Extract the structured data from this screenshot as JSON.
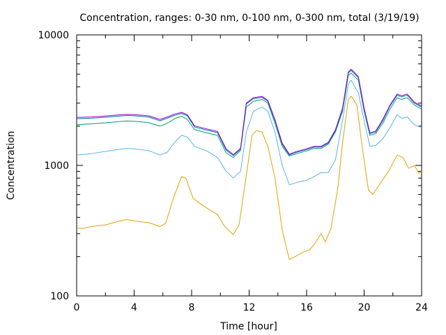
{
  "chart_data": {
    "type": "line",
    "title": "Concentration, ranges: 0-30 nm, 0-100 nm, 0-300 nm, total (3/19/19)",
    "xlabel": "Time [hour]",
    "ylabel": "Concentration",
    "xlim": [
      0,
      24
    ],
    "ylim": [
      100,
      10000
    ],
    "yscale": "log",
    "grid": false,
    "legend": "none",
    "x_ticks": [
      "0",
      "4",
      "8",
      "12",
      "16",
      "20",
      "24"
    ],
    "y_ticks": [
      "100",
      "1000",
      "10000"
    ],
    "series": [
      {
        "color": "#e69f00",
        "points": [
          [
            0,
            330
          ],
          [
            0.5,
            330
          ],
          [
            1,
            340
          ],
          [
            2,
            350
          ],
          [
            3,
            375
          ],
          [
            3.5,
            385
          ],
          [
            4,
            375
          ],
          [
            5,
            365
          ],
          [
            5.8,
            340
          ],
          [
            6.2,
            360
          ],
          [
            6.7,
            550
          ],
          [
            7.3,
            820
          ],
          [
            7.6,
            800
          ],
          [
            8.1,
            560
          ],
          [
            8.7,
            500
          ],
          [
            9.2,
            460
          ],
          [
            9.8,
            420
          ],
          [
            10.3,
            340
          ],
          [
            10.9,
            295
          ],
          [
            11.3,
            350
          ],
          [
            11.7,
            700
          ],
          [
            12.2,
            1700
          ],
          [
            12.5,
            1850
          ],
          [
            12.9,
            1800
          ],
          [
            13.3,
            1400
          ],
          [
            13.8,
            800
          ],
          [
            14.3,
            320
          ],
          [
            14.8,
            190
          ],
          [
            15.2,
            200
          ],
          [
            15.7,
            215
          ],
          [
            16.2,
            225
          ],
          [
            16.6,
            255
          ],
          [
            17.0,
            300
          ],
          [
            17.3,
            260
          ],
          [
            17.7,
            330
          ],
          [
            18.2,
            700
          ],
          [
            18.5,
            1500
          ],
          [
            18.9,
            3200
          ],
          [
            19.1,
            3400
          ],
          [
            19.5,
            2900
          ],
          [
            19.9,
            1300
          ],
          [
            20.3,
            650
          ],
          [
            20.6,
            600
          ],
          [
            21.2,
            750
          ],
          [
            21.7,
            900
          ],
          [
            22.3,
            1200
          ],
          [
            22.7,
            1150
          ],
          [
            23.1,
            950
          ],
          [
            23.5,
            1000
          ],
          [
            23.8,
            870
          ],
          [
            24,
            900
          ]
        ]
      },
      {
        "color": "#56b4e9",
        "points": [
          [
            0,
            1200
          ],
          [
            1,
            1230
          ],
          [
            2,
            1280
          ],
          [
            3,
            1330
          ],
          [
            3.5,
            1350
          ],
          [
            4,
            1340
          ],
          [
            5,
            1300
          ],
          [
            5.8,
            1200
          ],
          [
            6.3,
            1260
          ],
          [
            6.8,
            1500
          ],
          [
            7.3,
            1700
          ],
          [
            7.7,
            1650
          ],
          [
            8.2,
            1400
          ],
          [
            9,
            1300
          ],
          [
            9.8,
            1150
          ],
          [
            10.4,
            900
          ],
          [
            10.9,
            800
          ],
          [
            11.4,
            900
          ],
          [
            11.8,
            1800
          ],
          [
            12.3,
            2600
          ],
          [
            12.9,
            2800
          ],
          [
            13.3,
            2600
          ],
          [
            13.8,
            1800
          ],
          [
            14.3,
            1000
          ],
          [
            14.8,
            710
          ],
          [
            15.3,
            740
          ],
          [
            16,
            770
          ],
          [
            16.5,
            820
          ],
          [
            17,
            880
          ],
          [
            17.5,
            880
          ],
          [
            18,
            1100
          ],
          [
            18.5,
            2200
          ],
          [
            18.9,
            4200
          ],
          [
            19.1,
            4500
          ],
          [
            19.6,
            3600
          ],
          [
            20,
            2200
          ],
          [
            20.4,
            1400
          ],
          [
            20.8,
            1420
          ],
          [
            21.3,
            1600
          ],
          [
            21.8,
            1950
          ],
          [
            22.3,
            2450
          ],
          [
            22.6,
            2300
          ],
          [
            23,
            2350
          ],
          [
            23.5,
            2050
          ],
          [
            24,
            1950
          ]
        ]
      },
      {
        "color": "#009e73",
        "points": [
          [
            0,
            2050
          ],
          [
            1,
            2080
          ],
          [
            2,
            2120
          ],
          [
            3,
            2170
          ],
          [
            3.5,
            2190
          ],
          [
            4,
            2180
          ],
          [
            5,
            2130
          ],
          [
            5.8,
            2000
          ],
          [
            6.3,
            2100
          ],
          [
            6.8,
            2280
          ],
          [
            7.3,
            2380
          ],
          [
            7.7,
            2250
          ],
          [
            8.2,
            1880
          ],
          [
            9,
            1780
          ],
          [
            9.8,
            1700
          ],
          [
            10.4,
            1250
          ],
          [
            10.9,
            1150
          ],
          [
            11.4,
            1300
          ],
          [
            11.8,
            2800
          ],
          [
            12.3,
            3100
          ],
          [
            12.9,
            3200
          ],
          [
            13.3,
            3000
          ],
          [
            13.8,
            2100
          ],
          [
            14.3,
            1400
          ],
          [
            14.8,
            1180
          ],
          [
            15.3,
            1230
          ],
          [
            16,
            1290
          ],
          [
            16.5,
            1350
          ],
          [
            17,
            1350
          ],
          [
            17.5,
            1450
          ],
          [
            18,
            1800
          ],
          [
            18.5,
            2600
          ],
          [
            18.9,
            4900
          ],
          [
            19.1,
            5100
          ],
          [
            19.6,
            4500
          ],
          [
            20,
            2600
          ],
          [
            20.4,
            1700
          ],
          [
            20.8,
            1750
          ],
          [
            21.3,
            2100
          ],
          [
            21.8,
            2700
          ],
          [
            22.3,
            3300
          ],
          [
            22.6,
            3200
          ],
          [
            23,
            3300
          ],
          [
            23.5,
            2900
          ],
          [
            24,
            2700
          ]
        ]
      },
      {
        "color": "#0072b2",
        "points": [
          [
            0,
            2280
          ],
          [
            1,
            2300
          ],
          [
            2,
            2340
          ],
          [
            3,
            2390
          ],
          [
            3.5,
            2410
          ],
          [
            4,
            2400
          ],
          [
            5,
            2350
          ],
          [
            5.8,
            2200
          ],
          [
            6.3,
            2300
          ],
          [
            6.8,
            2420
          ],
          [
            7.3,
            2500
          ],
          [
            7.7,
            2400
          ],
          [
            8.2,
            1970
          ],
          [
            9,
            1870
          ],
          [
            9.8,
            1780
          ],
          [
            10.4,
            1310
          ],
          [
            10.9,
            1190
          ],
          [
            11.4,
            1330
          ],
          [
            11.8,
            2950
          ],
          [
            12.3,
            3250
          ],
          [
            12.9,
            3320
          ],
          [
            13.3,
            3100
          ],
          [
            13.8,
            2200
          ],
          [
            14.3,
            1450
          ],
          [
            14.8,
            1200
          ],
          [
            15.3,
            1260
          ],
          [
            16,
            1320
          ],
          [
            16.5,
            1380
          ],
          [
            17,
            1380
          ],
          [
            17.5,
            1480
          ],
          [
            18,
            1840
          ],
          [
            18.5,
            2700
          ],
          [
            18.9,
            5100
          ],
          [
            19.1,
            5350
          ],
          [
            19.6,
            4700
          ],
          [
            20,
            2700
          ],
          [
            20.4,
            1750
          ],
          [
            20.8,
            1800
          ],
          [
            21.3,
            2200
          ],
          [
            21.8,
            2850
          ],
          [
            22.3,
            3450
          ],
          [
            22.6,
            3350
          ],
          [
            23,
            3450
          ],
          [
            23.5,
            3000
          ],
          [
            24,
            2800
          ]
        ]
      },
      {
        "color": "#9400d3",
        "points": [
          [
            0,
            2330
          ],
          [
            1,
            2350
          ],
          [
            2,
            2390
          ],
          [
            3,
            2440
          ],
          [
            3.5,
            2460
          ],
          [
            4,
            2450
          ],
          [
            5,
            2400
          ],
          [
            5.8,
            2250
          ],
          [
            6.3,
            2350
          ],
          [
            6.8,
            2470
          ],
          [
            7.3,
            2550
          ],
          [
            7.7,
            2450
          ],
          [
            8.2,
            2010
          ],
          [
            9,
            1910
          ],
          [
            9.8,
            1820
          ],
          [
            10.4,
            1340
          ],
          [
            10.9,
            1210
          ],
          [
            11.4,
            1350
          ],
          [
            11.8,
            3000
          ],
          [
            12.3,
            3300
          ],
          [
            12.9,
            3380
          ],
          [
            13.3,
            3150
          ],
          [
            13.8,
            2240
          ],
          [
            14.3,
            1480
          ],
          [
            14.8,
            1220
          ],
          [
            15.3,
            1280
          ],
          [
            16,
            1340
          ],
          [
            16.5,
            1400
          ],
          [
            17,
            1400
          ],
          [
            17.5,
            1500
          ],
          [
            18,
            1870
          ],
          [
            18.5,
            2750
          ],
          [
            18.9,
            5200
          ],
          [
            19.1,
            5450
          ],
          [
            19.6,
            4800
          ],
          [
            20,
            2750
          ],
          [
            20.4,
            1780
          ],
          [
            20.8,
            1830
          ],
          [
            21.3,
            2250
          ],
          [
            21.8,
            2900
          ],
          [
            22.3,
            3520
          ],
          [
            22.6,
            3420
          ],
          [
            23,
            3520
          ],
          [
            23.5,
            3050
          ],
          [
            24,
            2850
          ]
        ]
      }
    ]
  }
}
